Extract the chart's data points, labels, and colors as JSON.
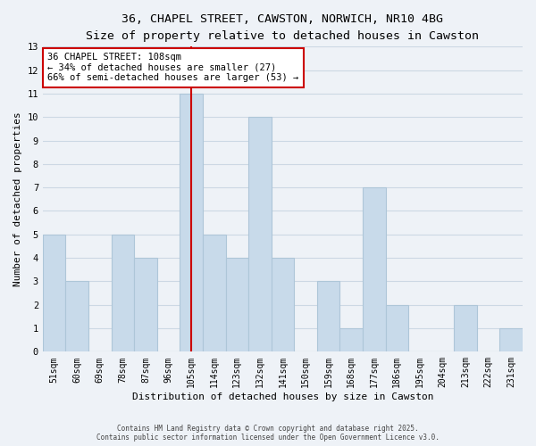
{
  "title_line1": "36, CHAPEL STREET, CAWSTON, NORWICH, NR10 4BG",
  "title_line2": "Size of property relative to detached houses in Cawston",
  "xlabel": "Distribution of detached houses by size in Cawston",
  "ylabel": "Number of detached properties",
  "bar_color": "#c8daea",
  "bar_edge_color": "#aec6d8",
  "categories": [
    "51sqm",
    "60sqm",
    "69sqm",
    "78sqm",
    "87sqm",
    "96sqm",
    "105sqm",
    "114sqm",
    "123sqm",
    "132sqm",
    "141sqm",
    "150sqm",
    "159sqm",
    "168sqm",
    "177sqm",
    "186sqm",
    "195sqm",
    "204sqm",
    "213sqm",
    "222sqm",
    "231sqm"
  ],
  "values": [
    5,
    3,
    0,
    5,
    4,
    0,
    11,
    5,
    4,
    10,
    4,
    0,
    3,
    1,
    7,
    2,
    0,
    0,
    2,
    0,
    1
  ],
  "vline_index": 6,
  "vline_color": "#cc0000",
  "ylim": [
    0,
    13
  ],
  "yticks": [
    0,
    1,
    2,
    3,
    4,
    5,
    6,
    7,
    8,
    9,
    10,
    11,
    12,
    13
  ],
  "annotation_title": "36 CHAPEL STREET: 108sqm",
  "annotation_line2": "← 34% of detached houses are smaller (27)",
  "annotation_line3": "66% of semi-detached houses are larger (53) →",
  "grid_color": "#ccd8e4",
  "background_color": "#eef2f7",
  "footer_line1": "Contains HM Land Registry data © Crown copyright and database right 2025.",
  "footer_line2": "Contains public sector information licensed under the Open Government Licence v3.0.",
  "title_fontsize": 9.5,
  "subtitle_fontsize": 8.5,
  "axis_label_fontsize": 8,
  "tick_fontsize": 7,
  "footer_fontsize": 5.5,
  "annotation_fontsize": 7.5
}
